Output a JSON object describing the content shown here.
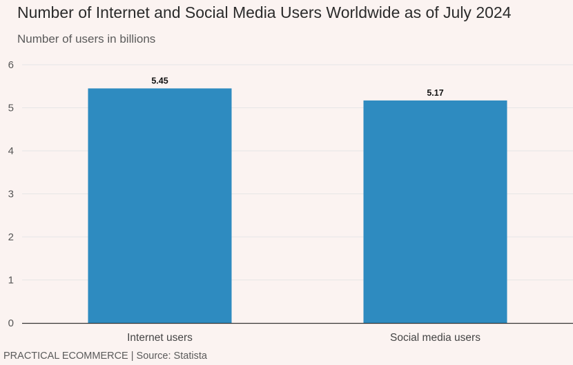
{
  "chart_data": {
    "type": "bar",
    "title": "Number of Internet and Social Media Users Worldwide as of July 2024",
    "subtitle": "Number of users in billions",
    "categories": [
      "Internet users",
      "Social media users"
    ],
    "values": [
      5.45,
      5.17
    ],
    "value_labels": [
      "5.45",
      "5.17"
    ],
    "xlabel": "",
    "ylabel": "Number of users in billions",
    "ylim": [
      0,
      6
    ],
    "yticks": [
      "0",
      "1",
      "2",
      "3",
      "4",
      "5",
      "6"
    ],
    "grid": true,
    "bar_color": "#2e8bc0"
  },
  "footer": {
    "source": "PRACTICAL ECOMMERCE | Source: Statista"
  },
  "colors": {
    "background": "#fbf3f1",
    "gridline": "#e6e6e6",
    "axis": "#333333"
  }
}
